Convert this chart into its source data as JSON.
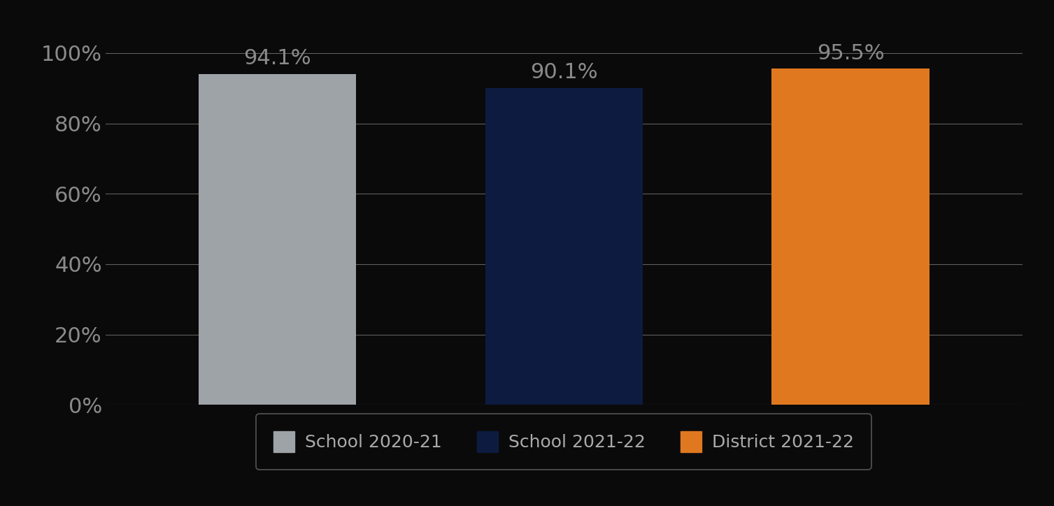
{
  "categories": [
    "School 2020-21",
    "School 2021-22",
    "District 2021-22"
  ],
  "values": [
    94.1,
    90.1,
    95.5
  ],
  "bar_colors": [
    "#9EA3A8",
    "#0D1B40",
    "#E07820"
  ],
  "background_color": "#0A0A0A",
  "text_color": "#8A8A8A",
  "label_color": "#8A8A8A",
  "legend_text_color": "#AAAAAA",
  "ylim": [
    0,
    105
  ],
  "yticks": [
    0,
    20,
    40,
    60,
    80,
    100
  ],
  "ytick_labels": [
    "0%",
    "20%",
    "40%",
    "60%",
    "80%",
    "100%"
  ],
  "bar_label_fontsize": 22,
  "tick_fontsize": 22,
  "legend_fontsize": 18,
  "grid_color": "#FFFFFF",
  "grid_alpha": 0.35,
  "legend_labels": [
    "School 2020-21",
    "School 2021-22",
    "District 2021-22"
  ],
  "bar_positions": [
    1.0,
    2.0,
    3.0
  ],
  "bar_width": 0.55,
  "xlim": [
    0.4,
    3.6
  ]
}
